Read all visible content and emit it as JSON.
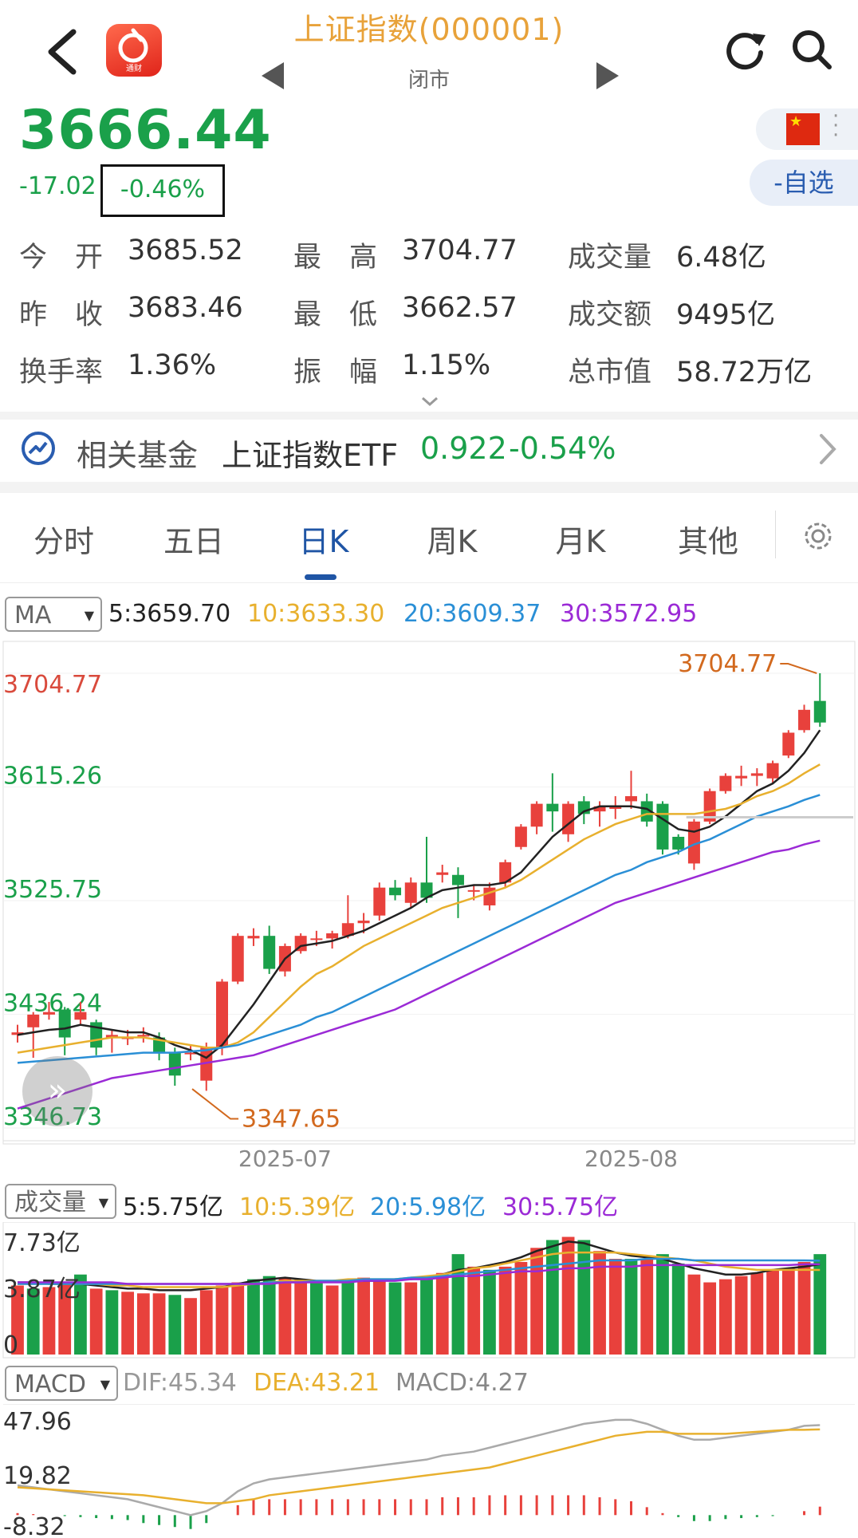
{
  "header": {
    "title": "上证指数(000001)",
    "status": "闭市",
    "logo_label": "通财"
  },
  "quote": {
    "price": "3666.44",
    "change": "-17.02",
    "change_pct": "-0.46%",
    "watchlist_button": "-自选"
  },
  "stats": [
    {
      "label": "今　开",
      "value": "3685.52"
    },
    {
      "label": "最　高",
      "value": "3704.77"
    },
    {
      "label": "成交量",
      "value": "6.48亿"
    },
    {
      "label": "昨　收",
      "value": "3683.46"
    },
    {
      "label": "最　低",
      "value": "3662.57"
    },
    {
      "label": "成交额",
      "value": "9495亿"
    },
    {
      "label": "换手率",
      "value": "1.36%"
    },
    {
      "label": "振　幅",
      "value": "1.15%"
    },
    {
      "label": "总市值",
      "value": "58.72万亿"
    }
  ],
  "fund": {
    "label": "相关基金",
    "name": "上证指数ETF",
    "price": "0.922",
    "change_pct": "-0.54%"
  },
  "tabs": [
    "分时",
    "五日",
    "日K",
    "周K",
    "月K",
    "其他"
  ],
  "active_tab": "日K",
  "ma": {
    "selector": "MA",
    "ma5": "5:3659.70",
    "ma10": "10:3633.30",
    "ma20": "20:3609.37",
    "ma30": "30:3572.95"
  },
  "volume": {
    "selector": "成交量",
    "ma5": "5:5.75亿",
    "ma10": "10:5.39亿",
    "ma20": "20:5.98亿",
    "ma30": "30:5.75亿"
  },
  "macd": {
    "selector": "MACD",
    "dif": "DIF:45.34",
    "dea": "DEA:43.21",
    "macd": "MACD:4.27"
  },
  "colors": {
    "up": "#e8413c",
    "down": "#1aa04a",
    "ma5": "#222222",
    "ma10": "#e8b02e",
    "ma20": "#2a8fd6",
    "ma30": "#9b2ad6",
    "accent": "#1f55a5"
  },
  "chart_data": [
    {
      "type": "candlestick",
      "price_labels": [
        "3704.77",
        "3615.26",
        "3525.75",
        "3436.24",
        "3346.73"
      ],
      "high_marker": "3704.77",
      "low_marker": "3347.65",
      "x_labels": [
        "2025-07",
        "2025-08"
      ],
      "ylim": [
        3346.73,
        3704.77
      ],
      "candles": [
        {
          "o": 3420,
          "c": 3422,
          "h": 3428,
          "l": 3414
        },
        {
          "o": 3426,
          "c": 3436,
          "h": 3438,
          "l": 3402
        },
        {
          "o": 3436,
          "c": 3438,
          "h": 3446,
          "l": 3432
        },
        {
          "o": 3440,
          "c": 3418,
          "h": 3442,
          "l": 3404
        },
        {
          "o": 3432,
          "c": 3438,
          "h": 3446,
          "l": 3428
        },
        {
          "o": 3430,
          "c": 3410,
          "h": 3432,
          "l": 3404
        },
        {
          "o": 3418,
          "c": 3420,
          "h": 3424,
          "l": 3406
        },
        {
          "o": 3418,
          "c": 3418,
          "h": 3424,
          "l": 3412
        },
        {
          "o": 3420,
          "c": 3420,
          "h": 3426,
          "l": 3414
        },
        {
          "o": 3418,
          "c": 3406,
          "h": 3422,
          "l": 3400
        },
        {
          "o": 3406,
          "c": 3388,
          "h": 3410,
          "l": 3380
        },
        {
          "o": 3406,
          "c": 3406,
          "h": 3412,
          "l": 3400
        },
        {
          "o": 3384,
          "c": 3410,
          "h": 3414,
          "l": 3376
        },
        {
          "o": 3410,
          "c": 3462,
          "h": 3464,
          "l": 3404
        },
        {
          "o": 3462,
          "c": 3498,
          "h": 3500,
          "l": 3460
        },
        {
          "o": 3496,
          "c": 3498,
          "h": 3504,
          "l": 3490
        },
        {
          "o": 3498,
          "c": 3472,
          "h": 3506,
          "l": 3468
        },
        {
          "o": 3470,
          "c": 3490,
          "h": 3492,
          "l": 3466
        },
        {
          "o": 3486,
          "c": 3498,
          "h": 3500,
          "l": 3484
        },
        {
          "o": 3496,
          "c": 3496,
          "h": 3502,
          "l": 3490
        },
        {
          "o": 3496,
          "c": 3500,
          "h": 3502,
          "l": 3488
        },
        {
          "o": 3498,
          "c": 3508,
          "h": 3530,
          "l": 3496
        },
        {
          "o": 3508,
          "c": 3510,
          "h": 3516,
          "l": 3500
        },
        {
          "o": 3514,
          "c": 3536,
          "h": 3540,
          "l": 3510
        },
        {
          "o": 3536,
          "c": 3530,
          "h": 3542,
          "l": 3526
        },
        {
          "o": 3524,
          "c": 3540,
          "h": 3544,
          "l": 3520
        },
        {
          "o": 3540,
          "c": 3528,
          "h": 3576,
          "l": 3524
        },
        {
          "o": 3546,
          "c": 3548,
          "h": 3554,
          "l": 3540
        },
        {
          "o": 3546,
          "c": 3538,
          "h": 3552,
          "l": 3512
        },
        {
          "o": 3534,
          "c": 3534,
          "h": 3538,
          "l": 3526
        },
        {
          "o": 3522,
          "c": 3536,
          "h": 3540,
          "l": 3518
        },
        {
          "o": 3540,
          "c": 3556,
          "h": 3558,
          "l": 3536
        },
        {
          "o": 3568,
          "c": 3584,
          "h": 3586,
          "l": 3566
        },
        {
          "o": 3584,
          "c": 3602,
          "h": 3604,
          "l": 3578
        },
        {
          "o": 3602,
          "c": 3596,
          "h": 3626,
          "l": 3580
        },
        {
          "o": 3578,
          "c": 3602,
          "h": 3604,
          "l": 3572
        },
        {
          "o": 3604,
          "c": 3594,
          "h": 3608,
          "l": 3586
        },
        {
          "o": 3596,
          "c": 3600,
          "h": 3604,
          "l": 3584
        },
        {
          "o": 3598,
          "c": 3600,
          "h": 3608,
          "l": 3590
        },
        {
          "o": 3604,
          "c": 3608,
          "h": 3628,
          "l": 3598
        },
        {
          "o": 3604,
          "c": 3588,
          "h": 3610,
          "l": 3584
        },
        {
          "o": 3602,
          "c": 3566,
          "h": 3604,
          "l": 3562
        },
        {
          "o": 3576,
          "c": 3566,
          "h": 3578,
          "l": 3562
        },
        {
          "o": 3555,
          "c": 3588,
          "h": 3590,
          "l": 3550
        },
        {
          "o": 3588,
          "c": 3612,
          "h": 3614,
          "l": 3586
        },
        {
          "o": 3612,
          "c": 3624,
          "h": 3626,
          "l": 3610
        },
        {
          "o": 3622,
          "c": 3624,
          "h": 3632,
          "l": 3616
        },
        {
          "o": 3624,
          "c": 3626,
          "h": 3630,
          "l": 3616
        },
        {
          "o": 3622,
          "c": 3634,
          "h": 3636,
          "l": 3618
        },
        {
          "o": 3640,
          "c": 3658,
          "h": 3660,
          "l": 3638
        },
        {
          "o": 3660,
          "c": 3676,
          "h": 3680,
          "l": 3658
        },
        {
          "o": 3683,
          "c": 3666,
          "h": 3704.77,
          "l": 3662.57
        }
      ],
      "ma5": [
        3420,
        3422,
        3424,
        3425,
        3428,
        3426,
        3424,
        3422,
        3422,
        3418,
        3412,
        3408,
        3402,
        3412,
        3428,
        3444,
        3462,
        3480,
        3490,
        3492,
        3494,
        3498,
        3502,
        3508,
        3514,
        3520,
        3528,
        3534,
        3536,
        3538,
        3538,
        3540,
        3548,
        3562,
        3576,
        3586,
        3596,
        3600,
        3600,
        3600,
        3598,
        3590,
        3582,
        3580,
        3584,
        3592,
        3602,
        3612,
        3618,
        3628,
        3642,
        3660
      ],
      "ma10": [
        3406,
        3408,
        3410,
        3412,
        3414,
        3416,
        3418,
        3418,
        3418,
        3416,
        3414,
        3412,
        3410,
        3410,
        3414,
        3422,
        3434,
        3446,
        3458,
        3468,
        3474,
        3482,
        3490,
        3496,
        3502,
        3508,
        3514,
        3520,
        3524,
        3528,
        3532,
        3536,
        3542,
        3550,
        3558,
        3566,
        3574,
        3580,
        3586,
        3590,
        3594,
        3594,
        3594,
        3594,
        3596,
        3598,
        3602,
        3608,
        3612,
        3618,
        3626,
        3633
      ],
      "ma20": [
        3398,
        3399,
        3400,
        3401,
        3402,
        3403,
        3404,
        3405,
        3406,
        3406,
        3406,
        3407,
        3408,
        3410,
        3412,
        3416,
        3420,
        3424,
        3428,
        3434,
        3438,
        3444,
        3450,
        3456,
        3462,
        3468,
        3474,
        3480,
        3486,
        3492,
        3498,
        3504,
        3510,
        3516,
        3522,
        3528,
        3534,
        3540,
        3546,
        3550,
        3556,
        3560,
        3564,
        3570,
        3574,
        3580,
        3586,
        3592,
        3596,
        3600,
        3605,
        3609
      ],
      "ma30": [
        3362,
        3366,
        3370,
        3374,
        3378,
        3382,
        3386,
        3388,
        3390,
        3392,
        3394,
        3396,
        3398,
        3400,
        3402,
        3404,
        3408,
        3412,
        3416,
        3420,
        3424,
        3428,
        3432,
        3436,
        3440,
        3446,
        3452,
        3458,
        3464,
        3470,
        3476,
        3482,
        3488,
        3494,
        3500,
        3506,
        3512,
        3518,
        3524,
        3528,
        3532,
        3536,
        3540,
        3544,
        3548,
        3552,
        3556,
        3560,
        3564,
        3566,
        3570,
        3573
      ]
    },
    {
      "type": "bar",
      "name": "成交量",
      "axis_labels": [
        "7.73亿",
        "3.87亿",
        "0"
      ],
      "ylim": [
        0,
        7.73
      ],
      "values": [
        4.4,
        4.2,
        4.3,
        4.6,
        5.1,
        4.2,
        4.1,
        4.0,
        3.9,
        3.9,
        3.8,
        3.6,
        4.1,
        4.4,
        4.6,
        4.8,
        5.0,
        4.9,
        4.8,
        4.6,
        4.4,
        4.8,
        4.9,
        4.8,
        4.6,
        4.6,
        5.0,
        5.2,
        6.4,
        5.6,
        5.4,
        5.6,
        5.9,
        6.8,
        7.3,
        7.5,
        7.3,
        6.6,
        6.1,
        6.1,
        6.1,
        6.4,
        5.8,
        5.1,
        4.6,
        4.8,
        5.0,
        5.2,
        5.4,
        5.5,
        5.9,
        6.4
      ],
      "dirs": [
        "u",
        "d",
        "u",
        "u",
        "d",
        "u",
        "d",
        "u",
        "u",
        "u",
        "d",
        "u",
        "u",
        "u",
        "u",
        "d",
        "d",
        "u",
        "u",
        "d",
        "u",
        "d",
        "u",
        "u",
        "d",
        "u",
        "d",
        "u",
        "d",
        "u",
        "d",
        "u",
        "u",
        "u",
        "d",
        "u",
        "d",
        "u",
        "u",
        "d",
        "u",
        "d",
        "d",
        "u",
        "u",
        "u",
        "u",
        "u",
        "u",
        "u",
        "u",
        "d"
      ],
      "ma_series": {
        "ma5": [
          4.6,
          4.6,
          4.5,
          4.5,
          4.5,
          4.4,
          4.3,
          4.2,
          4.2,
          4.1,
          4.1,
          4.1,
          4.2,
          4.3,
          4.5,
          4.7,
          4.8,
          4.9,
          4.8,
          4.7,
          4.7,
          4.7,
          4.7,
          4.7,
          4.8,
          4.8,
          4.9,
          5.1,
          5.4,
          5.5,
          5.7,
          5.9,
          6.2,
          6.6,
          6.9,
          7.2,
          7.1,
          6.8,
          6.5,
          6.3,
          6.2,
          6.1,
          5.8,
          5.5,
          5.3,
          5.1,
          5.1,
          5.2,
          5.4,
          5.5,
          5.6,
          5.75
        ],
        "ma10": [
          4.5,
          4.5,
          4.5,
          4.5,
          4.5,
          4.5,
          4.4,
          4.4,
          4.3,
          4.3,
          4.3,
          4.3,
          4.3,
          4.3,
          4.4,
          4.5,
          4.6,
          4.7,
          4.7,
          4.7,
          4.7,
          4.8,
          4.8,
          4.8,
          4.8,
          4.9,
          5.0,
          5.1,
          5.3,
          5.5,
          5.6,
          5.8,
          6.0,
          6.2,
          6.4,
          6.5,
          6.5,
          6.5,
          6.5,
          6.4,
          6.3,
          6.2,
          6.1,
          6.0,
          5.8,
          5.6,
          5.5,
          5.4,
          5.4,
          5.4,
          5.4,
          5.39
        ],
        "ma20": [
          4.5,
          4.5,
          4.5,
          4.5,
          4.5,
          4.5,
          4.5,
          4.5,
          4.5,
          4.5,
          4.5,
          4.5,
          4.5,
          4.5,
          4.5,
          4.5,
          4.6,
          4.6,
          4.6,
          4.7,
          4.7,
          4.7,
          4.8,
          4.8,
          4.8,
          4.9,
          4.9,
          5.0,
          5.1,
          5.2,
          5.3,
          5.4,
          5.5,
          5.6,
          5.7,
          5.8,
          5.9,
          6.0,
          6.0,
          6.0,
          6.1,
          6.1,
          6.1,
          6.0,
          6.0,
          6.0,
          6.0,
          6.0,
          6.0,
          6.0,
          6.0,
          5.98
        ],
        "ma30": [
          4.6,
          4.6,
          4.6,
          4.6,
          4.6,
          4.6,
          4.6,
          4.5,
          4.5,
          4.5,
          4.5,
          4.5,
          4.5,
          4.5,
          4.5,
          4.5,
          4.5,
          4.6,
          4.6,
          4.6,
          4.6,
          4.6,
          4.7,
          4.7,
          4.7,
          4.8,
          4.8,
          4.9,
          5.0,
          5.0,
          5.1,
          5.2,
          5.3,
          5.3,
          5.4,
          5.5,
          5.5,
          5.6,
          5.6,
          5.6,
          5.7,
          5.7,
          5.7,
          5.7,
          5.7,
          5.7,
          5.7,
          5.7,
          5.7,
          5.7,
          5.75,
          5.75
        ]
      }
    },
    {
      "type": "macd",
      "axis_labels": [
        "47.96",
        "19.82",
        "-8.32"
      ],
      "ylim": [
        -8.32,
        47.96
      ],
      "dif": [
        15,
        14,
        13,
        12,
        11,
        10,
        9,
        8,
        6,
        4,
        2,
        0,
        2,
        6,
        12,
        16,
        18,
        19,
        20,
        21,
        22,
        23,
        24,
        25,
        26,
        27,
        28,
        30,
        31,
        32,
        34,
        36,
        38,
        40,
        42,
        44,
        46,
        47,
        48,
        48,
        46,
        43,
        40,
        38,
        38,
        39,
        40,
        41,
        42,
        43,
        45,
        45.34
      ],
      "dea": [
        14,
        13.5,
        13,
        12.5,
        12,
        11.5,
        11,
        10.5,
        10,
        9,
        8,
        7,
        6,
        6,
        7,
        8,
        10,
        11,
        12,
        13,
        14,
        15,
        16,
        17,
        18,
        19,
        20,
        21,
        22,
        23,
        24,
        26,
        28,
        30,
        32,
        34,
        36,
        38,
        40,
        41,
        42,
        42,
        41,
        41,
        41,
        41,
        41.5,
        42,
        42.5,
        43,
        43,
        43.21
      ],
      "hist": [
        1,
        0.5,
        0,
        -0.5,
        -1,
        -1.5,
        -2,
        -2.5,
        -4,
        -5,
        -6,
        -7,
        -4,
        0,
        5,
        8,
        8,
        8,
        8,
        8,
        8,
        8,
        8,
        8,
        8,
        8,
        8,
        9,
        9,
        9,
        10,
        10,
        10,
        10,
        10,
        10,
        10,
        9,
        8,
        7,
        4,
        1,
        -1,
        -3,
        -3,
        -2,
        -1.5,
        -1,
        -0.5,
        0,
        2,
        4.27
      ]
    }
  ]
}
